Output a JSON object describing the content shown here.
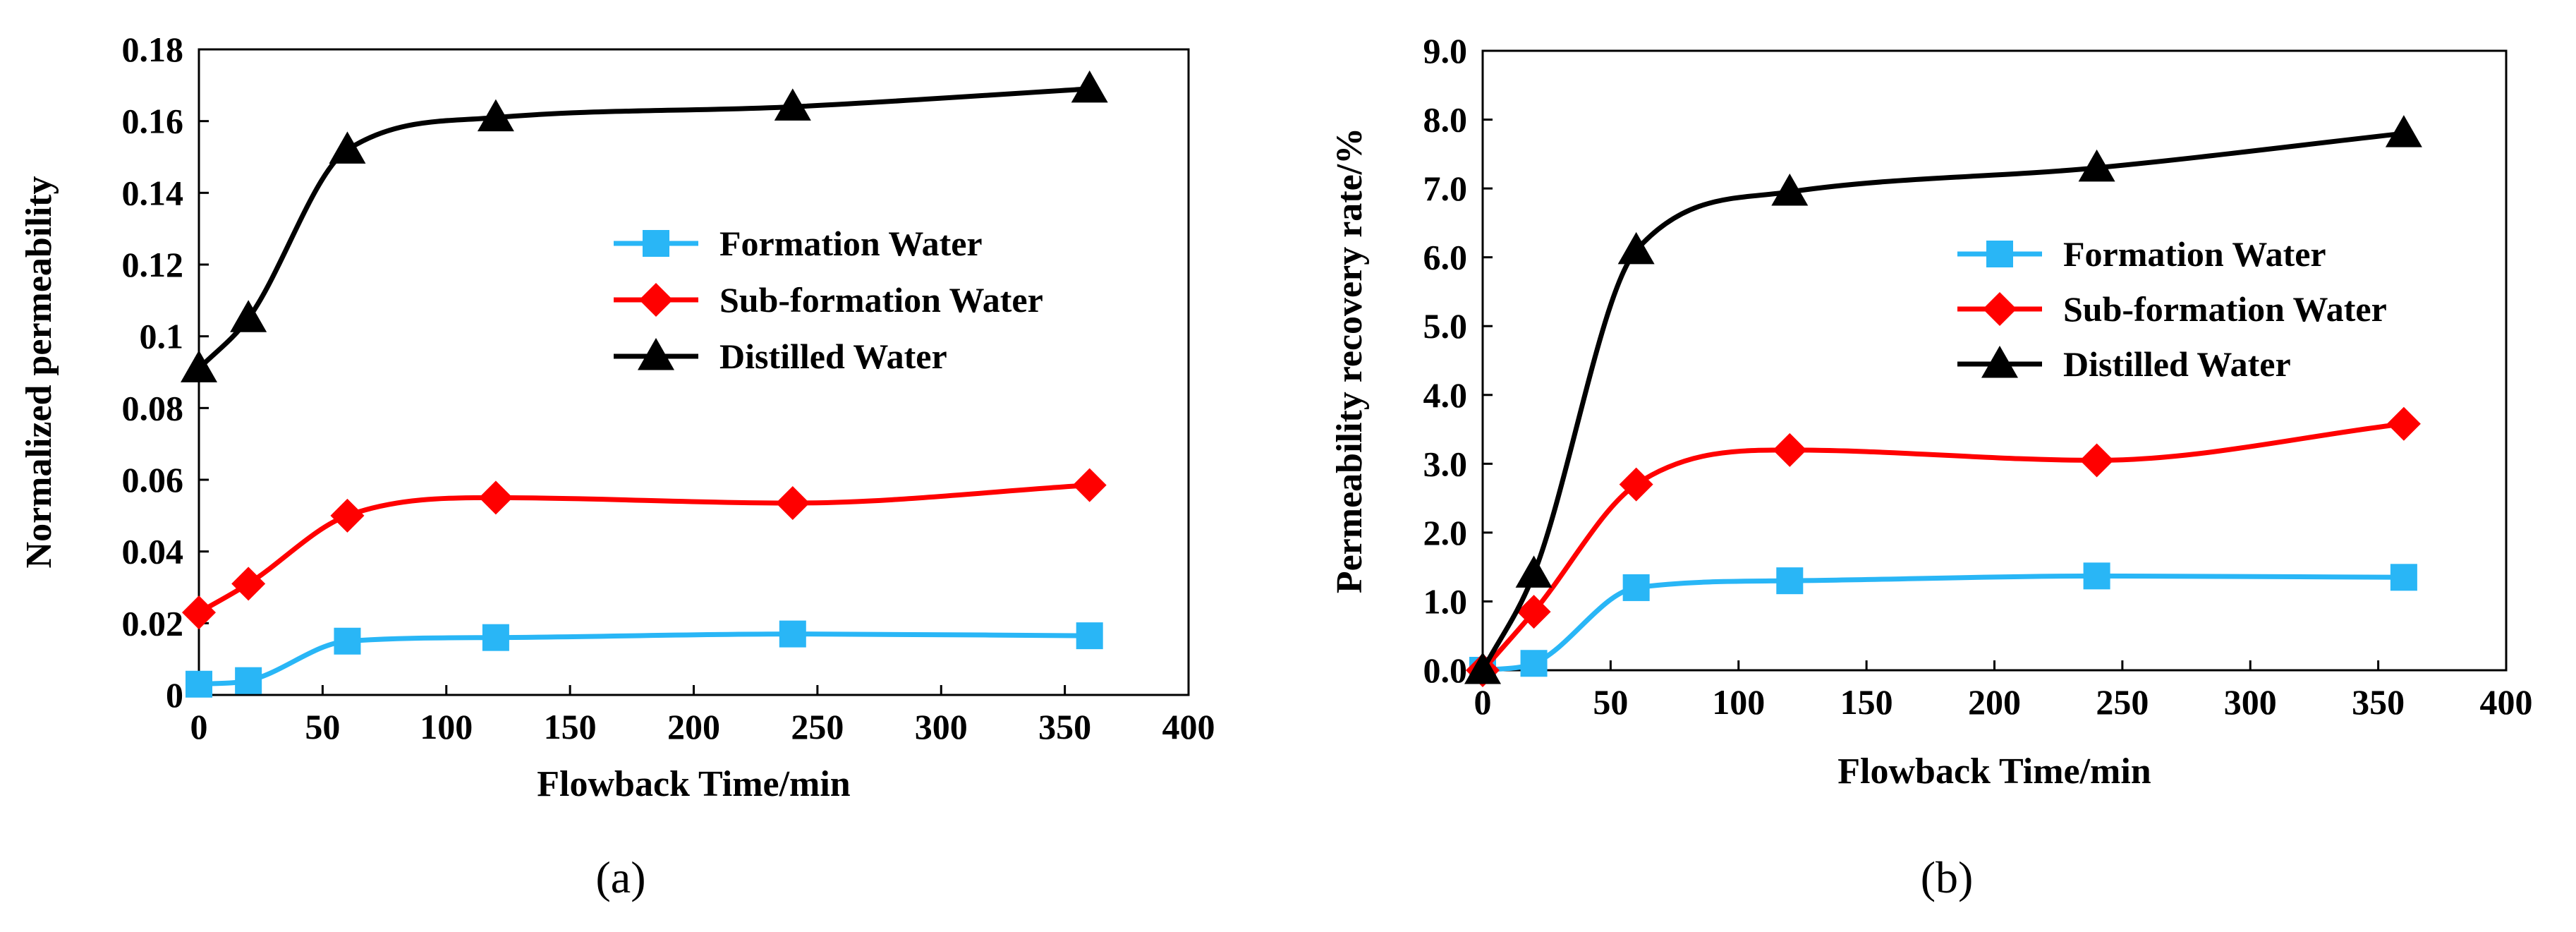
{
  "chart_data": [
    {
      "type": "line",
      "panel_label": "(a)",
      "xlabel": "Flowback Time/min",
      "ylabel": "Normalized permeability",
      "xlim": [
        0,
        400
      ],
      "ylim": [
        0,
        0.18
      ],
      "x_ticks": [
        "0",
        "50",
        "100",
        "150",
        "200",
        "250",
        "300",
        "350",
        "400"
      ],
      "y_ticks": [
        "0",
        "0.02",
        "0.04",
        "0.06",
        "0.08",
        "0.1",
        "0.12",
        "0.14",
        "0.16",
        "0.18"
      ],
      "grid": false,
      "legend_position": "center-right",
      "x": [
        0,
        20,
        60,
        120,
        240,
        360
      ],
      "series": [
        {
          "name": "Formation Water",
          "color": "#29b6f6",
          "marker": "square",
          "values": [
            0.003,
            0.004,
            0.015,
            0.016,
            0.017,
            0.0165
          ]
        },
        {
          "name": "Sub-formation Water",
          "color": "#ff0000",
          "marker": "diamond",
          "values": [
            0.023,
            0.031,
            0.05,
            0.055,
            0.0535,
            0.0585
          ]
        },
        {
          "name": "Distilled Water",
          "color": "#000000",
          "marker": "triangle",
          "values": [
            0.091,
            0.105,
            0.152,
            0.161,
            0.164,
            0.169
          ]
        }
      ]
    },
    {
      "type": "line",
      "panel_label": "(b)",
      "xlabel": "Flowback Time/min",
      "ylabel": "Permeability recovery rate/%",
      "xlim": [
        0,
        400
      ],
      "ylim": [
        0,
        9.0
      ],
      "x_ticks": [
        "0",
        "50",
        "100",
        "150",
        "200",
        "250",
        "300",
        "350",
        "400"
      ],
      "y_ticks": [
        "0.0",
        "1.0",
        "2.0",
        "3.0",
        "4.0",
        "5.0",
        "6.0",
        "7.0",
        "8.0",
        "9.0"
      ],
      "grid": false,
      "legend_position": "center-right",
      "x": [
        0,
        20,
        60,
        120,
        240,
        360
      ],
      "series": [
        {
          "name": "Formation Water",
          "color": "#29b6f6",
          "marker": "square",
          "values": [
            0.0,
            0.1,
            1.2,
            1.3,
            1.37,
            1.35
          ]
        },
        {
          "name": "Sub-formation Water",
          "color": "#ff0000",
          "marker": "diamond",
          "values": [
            0.0,
            0.85,
            2.7,
            3.2,
            3.05,
            3.58
          ]
        },
        {
          "name": "Distilled Water",
          "color": "#000000",
          "marker": "triangle",
          "values": [
            0.0,
            1.4,
            6.1,
            6.95,
            7.3,
            7.8
          ]
        }
      ]
    }
  ]
}
